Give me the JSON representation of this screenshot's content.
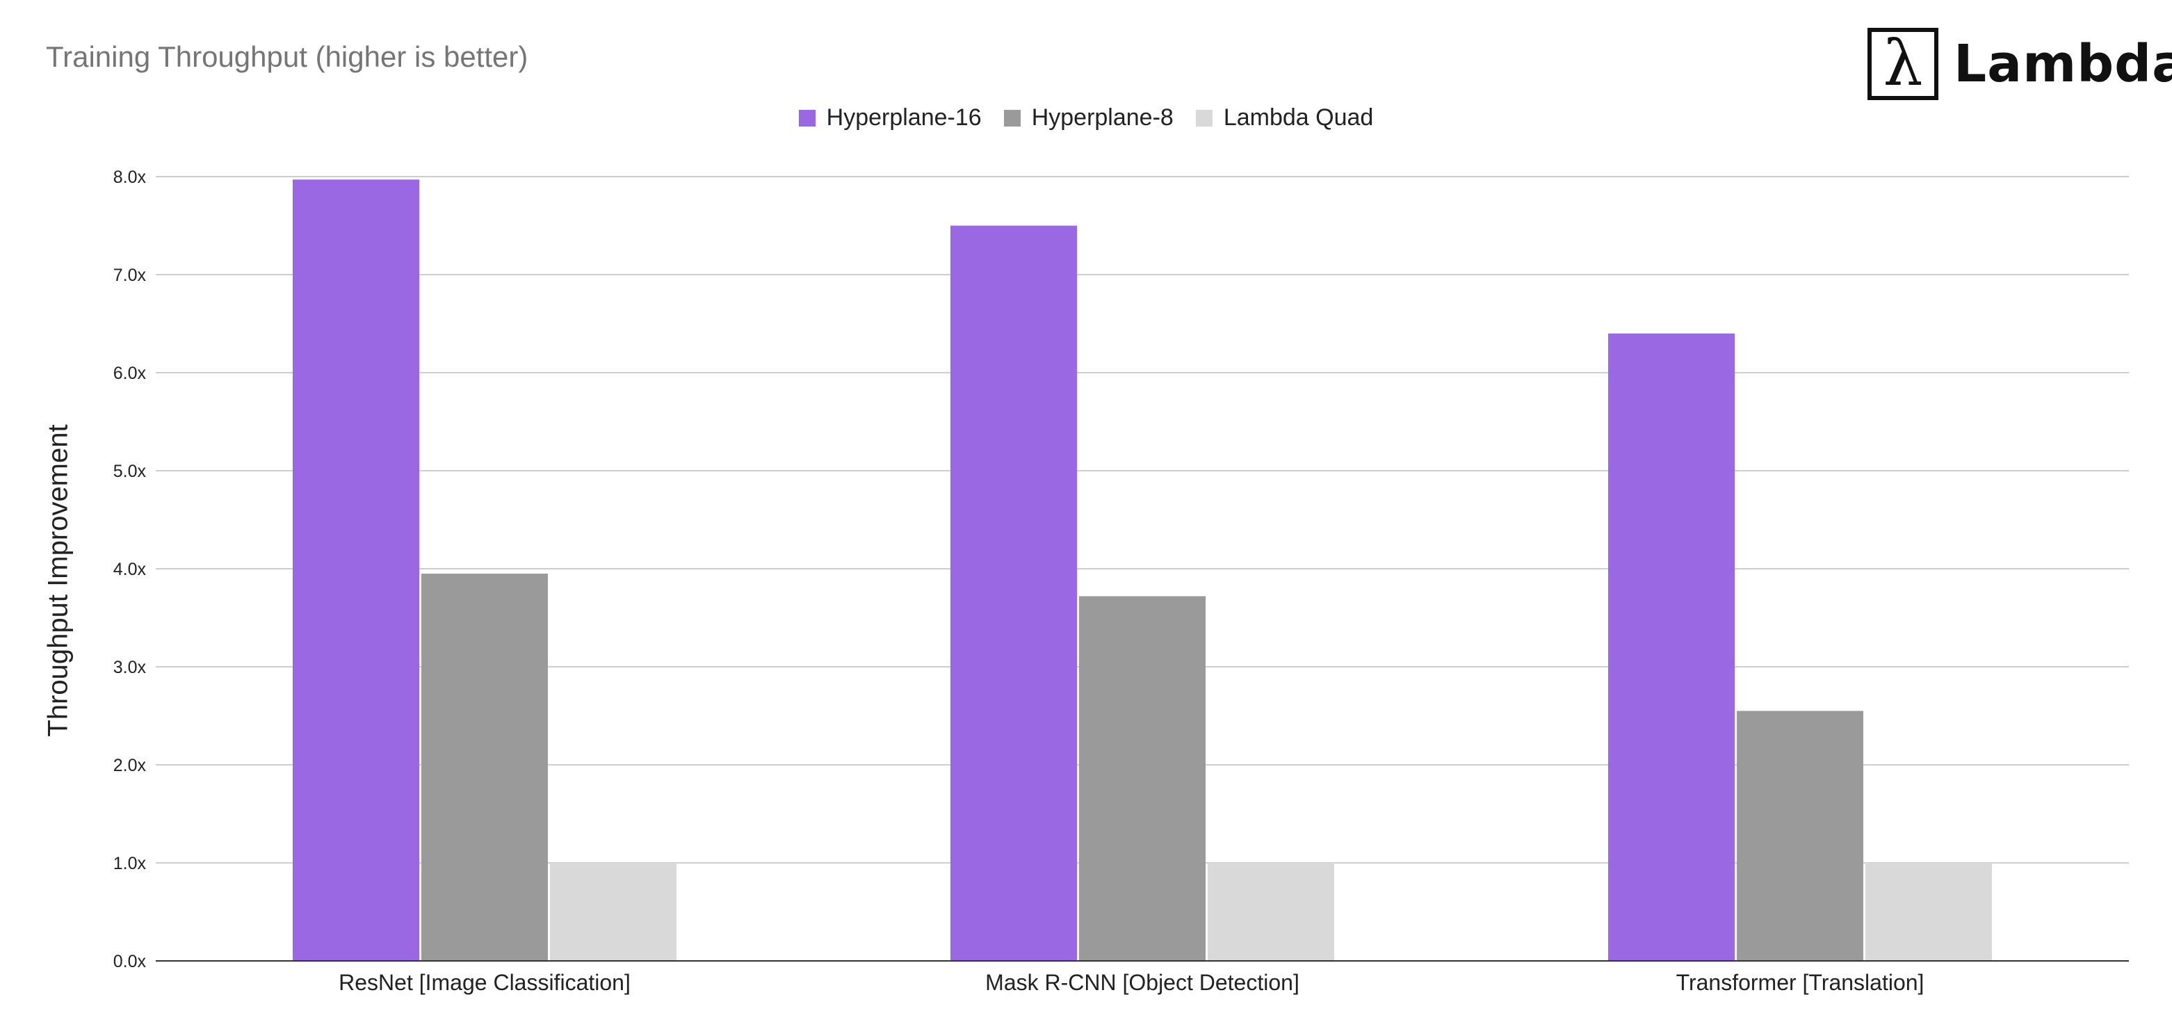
{
  "logo": {
    "symbol": "λ",
    "text": "Lambda"
  },
  "chart_data": {
    "type": "bar",
    "title": "Training Throughput (higher is better)",
    "xlabel": "",
    "ylabel": "Throughput Improvement",
    "categories": [
      "ResNet [Image Classification]",
      "Mask R-CNN [Object Detection]",
      "Transformer [Translation]"
    ],
    "series": [
      {
        "name": "Hyperplane-16",
        "color": "#9b68e4",
        "values": [
          7.97,
          7.5,
          6.4
        ]
      },
      {
        "name": "Hyperplane-8",
        "color": "#9a9a9a",
        "values": [
          3.95,
          3.72,
          2.55
        ]
      },
      {
        "name": "Lambda Quad",
        "color": "#d9d9d9",
        "values": [
          1.0,
          1.0,
          1.0
        ]
      }
    ],
    "ylim": [
      0,
      8
    ],
    "yticks": [
      "0.0x",
      "1.0x",
      "2.0x",
      "3.0x",
      "4.0x",
      "5.0x",
      "6.0x",
      "7.0x",
      "8.0x"
    ],
    "grid": true,
    "legend_position": "top-center"
  }
}
